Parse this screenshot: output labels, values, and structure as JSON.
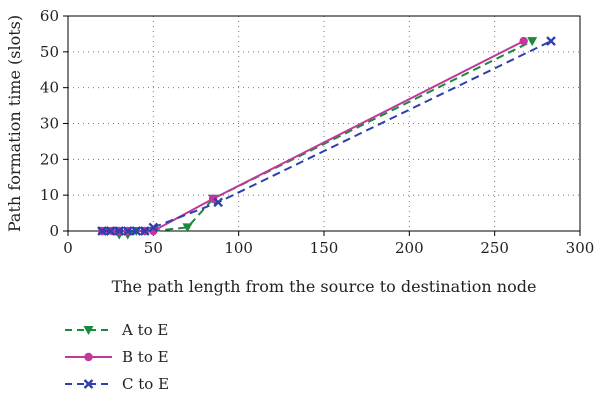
{
  "chart_data": {
    "type": "line",
    "title": "",
    "xlabel": "The path length from the source to destination node",
    "ylabel": "Path formation time (slots)",
    "xlim": [
      0,
      300
    ],
    "ylim": [
      0,
      60
    ],
    "x_ticks": [
      0,
      50,
      100,
      150,
      200,
      250,
      300
    ],
    "y_ticks": [
      0,
      10,
      20,
      30,
      40,
      50,
      60
    ],
    "grid": true,
    "legend_position": "below-left",
    "series": [
      {
        "name": "A to E",
        "color": "#1a8a3c",
        "line_style": "dashed",
        "marker": "triangle-down",
        "points": [
          [
            20,
            0
          ],
          [
            23,
            0
          ],
          [
            27,
            0
          ],
          [
            30,
            -1
          ],
          [
            35,
            -1
          ],
          [
            40,
            0
          ],
          [
            45,
            0
          ],
          [
            50,
            0
          ],
          [
            70,
            1
          ],
          [
            85,
            9
          ],
          [
            272,
            53
          ]
        ]
      },
      {
        "name": "B to E",
        "color": "#c0399a",
        "line_style": "solid",
        "marker": "circle",
        "points": [
          [
            20,
            0
          ],
          [
            23,
            0
          ],
          [
            26,
            0
          ],
          [
            30,
            0
          ],
          [
            35,
            0
          ],
          [
            45,
            0
          ],
          [
            50,
            0
          ],
          [
            85,
            9
          ],
          [
            267,
            53
          ]
        ]
      },
      {
        "name": "C to E",
        "color": "#2e3fb0",
        "line_style": "dashed",
        "marker": "x",
        "points": [
          [
            20,
            0
          ],
          [
            25,
            0
          ],
          [
            30,
            0
          ],
          [
            35,
            0
          ],
          [
            40,
            0
          ],
          [
            45,
            0
          ],
          [
            50,
            1
          ],
          [
            88,
            8
          ],
          [
            283,
            53
          ]
        ]
      }
    ]
  }
}
